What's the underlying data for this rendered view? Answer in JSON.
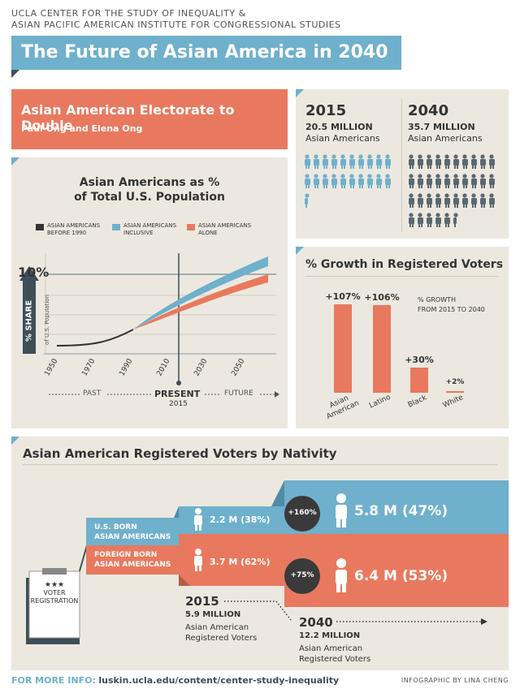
{
  "header": {
    "org_line1": "UCLA CENTER FOR THE STUDY OF INEQUALITY &",
    "org_line2": "ASIAN PACIFIC AMERICAN INSTITUTE FOR CONGRESSIONAL STUDIES",
    "title": "The Future of Asian America in 2040"
  },
  "electorate": {
    "title": "Asian American Electorate to Double",
    "authors": "Paul Ong and Elena Ong"
  },
  "population": {
    "y2015": "2015",
    "y2015_value": "20.5 MILLION",
    "y2015_label": "Asian Americans",
    "y2040": "2040",
    "y2040_value": "35.7 MILLION",
    "y2040_label": "Asian Americans"
  },
  "share_chart": {
    "title_line1": "Asian Americans as %",
    "title_line2": "of Total U.S. Population",
    "legend": [
      "ASIAN AMERICANS BEFORE 1990",
      "ASIAN AMERICANS INCLUSIVE",
      "ASIAN AMERICANS ALONE"
    ],
    "legend_l1": [
      "ASIAN AMERICANS",
      "ASIAN AMERICANS",
      "ASIAN AMERICANS"
    ],
    "legend_l2": [
      "BEFORE 1990",
      "INCLUSIVE",
      "ALONE"
    ],
    "ten_pct": "10%",
    "ylabel": "% SHARE",
    "ylabel_sub": "of U.S. Population",
    "x_ticks": [
      "1950",
      "1970",
      "1990",
      "2010",
      "2030",
      "2050"
    ],
    "past": "PAST",
    "present": "PRESENT",
    "present_year": "2015",
    "future": "FUTURE"
  },
  "chart_data": {
    "type": "bar",
    "title": "% Growth in Registered Voters",
    "note_line1": "% GROWTH",
    "note_line2": "FROM 2015 TO 2040",
    "categories": [
      "Asian American",
      "Latino",
      "Black",
      "White"
    ],
    "category_lines": [
      [
        "Asian",
        "American"
      ],
      [
        "Latino"
      ],
      [
        "Black"
      ],
      [
        "White"
      ]
    ],
    "values": [
      107,
      106,
      30,
      2
    ],
    "value_labels": [
      "+107%",
      "+106%",
      "+30%",
      "+2%"
    ],
    "ylim": [
      0,
      110
    ],
    "color": "#e8795f"
  },
  "nativity": {
    "title": "Asian American Registered Voters by Nativity",
    "us_born_l1": "U.S. BORN",
    "us_born_l2": "ASIAN AMERICANS",
    "foreign_l1": "FOREIGN BORN",
    "foreign_l2": "ASIAN AMERICANS",
    "us_2015": "2.2 M  (38%)",
    "foreign_2015": "3.7 M  (62%)",
    "us_2040": "5.8 M  (47%)",
    "foreign_2040": "6.4 M  (53%)",
    "us_growth": "+160%",
    "foreign_growth": "+75%",
    "clipboard_stars": "★★★",
    "clipboard_l1": "VOTER",
    "clipboard_l2": "REGISTRATION",
    "y2015": "2015",
    "y2015_value": "5.9 MILLION",
    "y2015_l1": "Asian American",
    "y2015_l2": "Registered Voters",
    "y2040": "2040",
    "y2040_value": "12.2 MILLION",
    "y2040_l1": "Asian American",
    "y2040_l2": "Registered Voters",
    "colors": {
      "blue": "#6fb0cc",
      "salmon": "#e8795f",
      "dark": "#3a3a3a"
    }
  },
  "footer": {
    "more_info_label": "FOR MORE INFO:",
    "more_info_url": "luskin.ucla.edu/content/center-study-inequality",
    "credit": "INFOGRAPHIC BY LINA CHENG"
  }
}
